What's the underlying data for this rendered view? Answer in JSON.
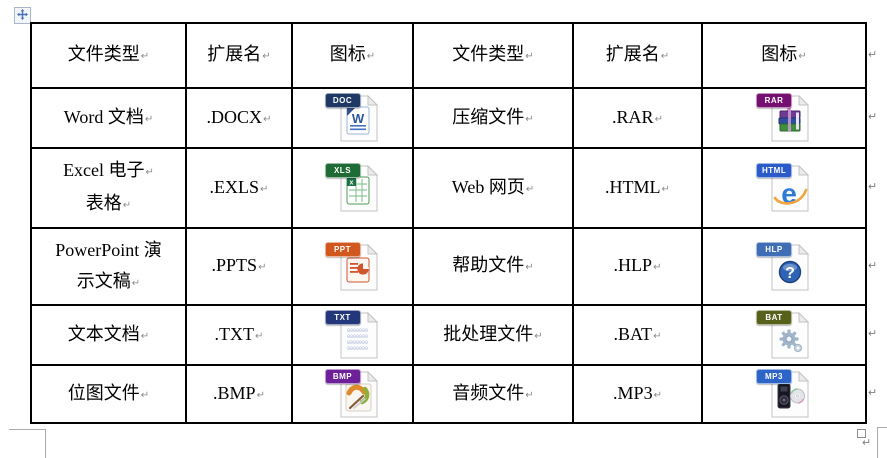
{
  "marks": {
    "end_of_cell": "↵",
    "end_of_row": "↵",
    "after_table": "↵"
  },
  "table": {
    "border_color": "#000000",
    "rows": [
      {
        "cells": [
          {
            "kind": "text",
            "lines": [
              "文件类型"
            ]
          },
          {
            "kind": "text",
            "lines": [
              "扩展名"
            ]
          },
          {
            "kind": "text",
            "lines": [
              "图标"
            ]
          },
          {
            "kind": "text",
            "lines": [
              "文件类型"
            ]
          },
          {
            "kind": "text",
            "lines": [
              "扩展名"
            ]
          },
          {
            "kind": "text",
            "lines": [
              "图标"
            ]
          }
        ]
      },
      {
        "cells": [
          {
            "kind": "text",
            "lines": [
              "Word 文档"
            ]
          },
          {
            "kind": "text",
            "lines": [
              ".DOCX"
            ]
          },
          {
            "kind": "icon",
            "name": "doc-file-icon",
            "badge": "DOC",
            "badge_color": "#1F3864",
            "glyph": "word"
          },
          {
            "kind": "text",
            "lines": [
              "压缩文件"
            ]
          },
          {
            "kind": "text",
            "lines": [
              ".RAR"
            ]
          },
          {
            "kind": "icon",
            "name": "rar-file-icon",
            "badge": "RAR",
            "badge_color": "#751070",
            "glyph": "rar"
          }
        ]
      },
      {
        "cells": [
          {
            "kind": "text",
            "lines": [
              "Excel 电子",
              "表格"
            ],
            "line_marks": [
              true,
              true
            ]
          },
          {
            "kind": "text",
            "lines": [
              ".EXLS"
            ]
          },
          {
            "kind": "icon",
            "name": "xls-file-icon",
            "badge": "XLS",
            "badge_color": "#1F6B35",
            "glyph": "xls"
          },
          {
            "kind": "text",
            "lines": [
              "Web 网页"
            ]
          },
          {
            "kind": "text",
            "lines": [
              ".HTML"
            ]
          },
          {
            "kind": "icon",
            "name": "html-file-icon",
            "badge": "HTML",
            "badge_color": "#2A5BC8",
            "glyph": "html"
          }
        ]
      },
      {
        "cells": [
          {
            "kind": "text",
            "lines": [
              "PowerPoint 演",
              "示文稿"
            ],
            "line_marks": [
              false,
              true
            ]
          },
          {
            "kind": "text",
            "lines": [
              ".PPTS"
            ]
          },
          {
            "kind": "icon",
            "name": "ppt-file-icon",
            "badge": "PPT",
            "badge_color": "#D2571E",
            "glyph": "ppt"
          },
          {
            "kind": "text",
            "lines": [
              "帮助文件"
            ]
          },
          {
            "kind": "text",
            "lines": [
              ".HLP"
            ]
          },
          {
            "kind": "icon",
            "name": "hlp-file-icon",
            "badge": "HLP",
            "badge_color": "#3F6EB5",
            "glyph": "hlp"
          }
        ]
      },
      {
        "cells": [
          {
            "kind": "text",
            "lines": [
              "文本文档"
            ]
          },
          {
            "kind": "text",
            "lines": [
              ".TXT"
            ]
          },
          {
            "kind": "icon",
            "name": "txt-file-icon",
            "badge": "TXT",
            "badge_color": "#24377B",
            "glyph": "txt"
          },
          {
            "kind": "text",
            "lines": [
              "批处理文件"
            ]
          },
          {
            "kind": "text",
            "lines": [
              ".BAT"
            ]
          },
          {
            "kind": "icon",
            "name": "bat-file-icon",
            "badge": "BAT",
            "badge_color": "#57611B",
            "glyph": "bat"
          }
        ]
      },
      {
        "cells": [
          {
            "kind": "text",
            "lines": [
              "位图文件"
            ]
          },
          {
            "kind": "text",
            "lines": [
              ".BMP"
            ]
          },
          {
            "kind": "icon",
            "name": "bmp-file-icon",
            "badge": "BMP",
            "badge_color": "#6E2099",
            "glyph": "bmp"
          },
          {
            "kind": "text",
            "lines": [
              "音频文件"
            ]
          },
          {
            "kind": "text",
            "lines": [
              ".MP3"
            ]
          },
          {
            "kind": "icon",
            "name": "mp3-file-icon",
            "badge": "MP3",
            "badge_color": "#2C64C8",
            "glyph": "mp3"
          }
        ]
      }
    ]
  }
}
